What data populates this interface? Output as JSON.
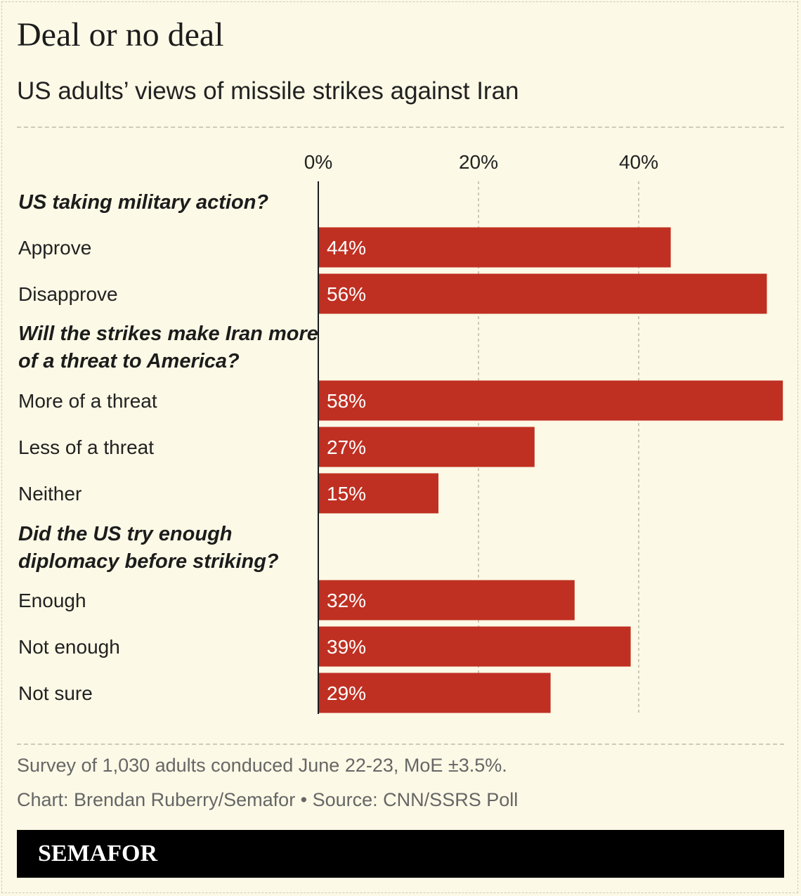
{
  "title": "Deal or no deal",
  "subtitle": "US adults’ views of missile strikes against Iran",
  "chart_data": {
    "type": "bar",
    "orientation": "horizontal",
    "axis_ticks": [
      "0%",
      "20%",
      "40%"
    ],
    "xlim": [
      0,
      58
    ],
    "grid": true,
    "colors": {
      "bar": "#bf3022",
      "bar_label": "#ffffff",
      "grid": "#bdb9a6",
      "axis": "#1c1c1c"
    },
    "groups": [
      {
        "heading": "US taking military action?",
        "items": [
          {
            "label": "Approve",
            "value": 44,
            "value_label": "44%"
          },
          {
            "label": "Disapprove",
            "value": 56,
            "value_label": "56%"
          }
        ]
      },
      {
        "heading": "Will the strikes make Iran more of a threat to America?",
        "heading_lines": [
          "Will the strikes make Iran more",
          "of a threat to America?"
        ],
        "items": [
          {
            "label": "More of a threat",
            "value": 58,
            "value_label": "58%"
          },
          {
            "label": "Less of a threat",
            "value": 27,
            "value_label": "27%"
          },
          {
            "label": "Neither",
            "value": 15,
            "value_label": "15%"
          }
        ]
      },
      {
        "heading": "Did the US try enough diplomacy before striking?",
        "heading_lines": [
          "Did the US try enough",
          "diplomacy before striking?"
        ],
        "items": [
          {
            "label": "Enough",
            "value": 32,
            "value_label": "32%"
          },
          {
            "label": "Not enough",
            "value": 39,
            "value_label": "39%"
          },
          {
            "label": "Not sure",
            "value": 29,
            "value_label": "29%"
          }
        ]
      }
    ]
  },
  "footer": {
    "note": "Survey of 1,030 adults conduced June 22-23, MoE ±3.5%.",
    "credit": "Chart: Brendan Ruberry/Semafor • Source: CNN/SSRS Poll",
    "brand": "SEMAFOR"
  }
}
